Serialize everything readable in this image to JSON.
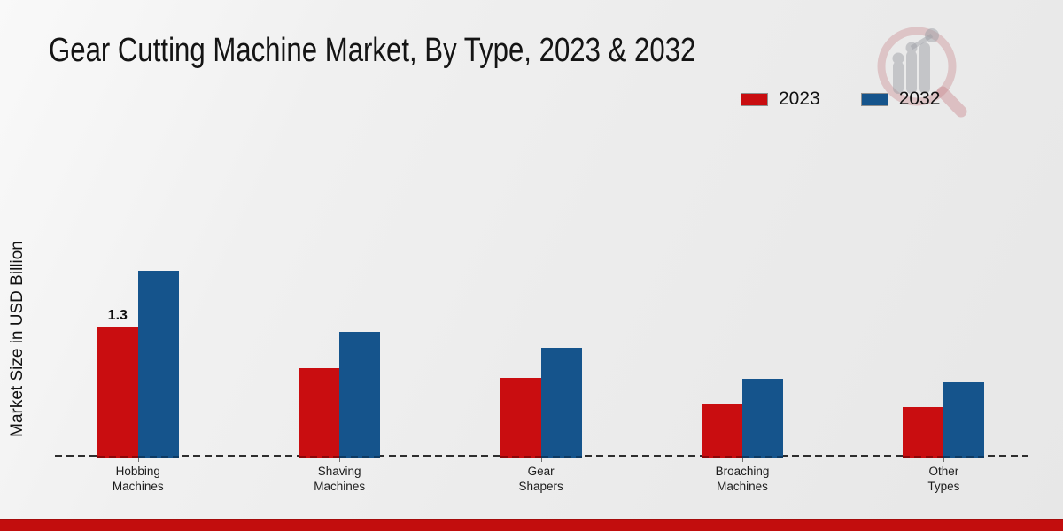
{
  "page": {
    "title": "Gear Cutting Machine Market, By Type, 2023 & 2032"
  },
  "y_axis": {
    "label": "Market Size in USD Billion"
  },
  "legend": {
    "items": [
      {
        "label": "2023",
        "color": "#c90d10"
      },
      {
        "label": "2032",
        "color": "#15548c"
      }
    ]
  },
  "chart_data": {
    "type": "bar",
    "title": "Gear Cutting Machine Market, By Type, 2023 & 2032",
    "xlabel": "",
    "ylabel": "Market Size in USD Billion",
    "categories": [
      "Hobbing Machines",
      "Shaving Machines",
      "Gear Shapers",
      "Broaching Machines",
      "Other Types"
    ],
    "category_lines": [
      [
        "Hobbing",
        "Machines"
      ],
      [
        "Shaving",
        "Machines"
      ],
      [
        "Gear",
        "Shapers"
      ],
      [
        "Broaching",
        "Machines"
      ],
      [
        "Other",
        "Types"
      ]
    ],
    "series": [
      {
        "name": "2023",
        "color": "#c90d10",
        "edge_color": "#8c0608",
        "values": [
          1.3,
          0.89,
          0.79,
          0.53,
          0.49
        ]
      },
      {
        "name": "2032",
        "color": "#15548c",
        "edge_color": "#0d3a63",
        "values": [
          1.87,
          1.26,
          1.09,
          0.78,
          0.74
        ]
      }
    ],
    "data_labels": [
      {
        "series_index": 0,
        "category_index": 0,
        "text": "1.3"
      }
    ],
    "ylim": [
      0,
      2.2
    ],
    "grid": false,
    "legend_position": "top-right",
    "baseline_style": "dashed"
  },
  "branding": {
    "watermark_icon": "magnifier-growth-chart-logo",
    "bottom_bar_color": "#c20d0d"
  }
}
